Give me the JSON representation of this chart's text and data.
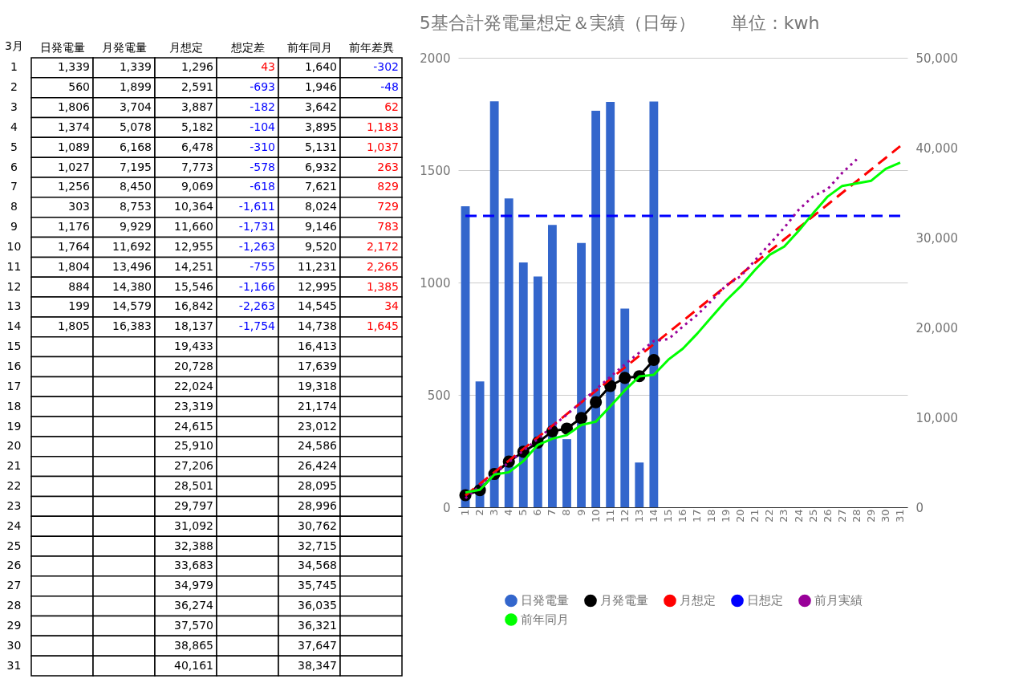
{
  "chart_data": [
    {
      "type": "heatmap",
      "ylabel": "3月",
      "categories": [
        "日発電量",
        "月発電量",
        "月想定",
        "想定差",
        "前年同月",
        "前年差異"
      ],
      "y_categories": [
        "1",
        "2",
        "3",
        "4",
        "5",
        "6",
        "7",
        "8",
        "9",
        "10",
        "11",
        "12",
        "13",
        "14",
        "15",
        "16",
        "17",
        "18",
        "19",
        "20",
        "21",
        "22",
        "23",
        "24",
        "25",
        "26",
        "27",
        "28",
        "29",
        "30",
        "31"
      ],
      "cells": [
        [
          1339,
          1339,
          1296,
          43,
          1640,
          -302
        ],
        [
          560,
          1899,
          2591,
          -693,
          1946,
          -48
        ],
        [
          1806,
          3704,
          3887,
          -182,
          3642,
          62
        ],
        [
          1374,
          5078,
          5182,
          -104,
          3895,
          1183
        ],
        [
          1089,
          6168,
          6478,
          -310,
          5131,
          1037
        ],
        [
          1027,
          7195,
          7773,
          -578,
          6932,
          263
        ],
        [
          1256,
          8450,
          9069,
          -618,
          7621,
          829
        ],
        [
          303,
          8753,
          10364,
          -1611,
          8024,
          729
        ],
        [
          1176,
          9929,
          11660,
          -1731,
          9146,
          783
        ],
        [
          1764,
          11692,
          12955,
          -1263,
          9520,
          2172
        ],
        [
          1804,
          13496,
          14251,
          -755,
          11231,
          2265
        ],
        [
          884,
          14380,
          15546,
          -1166,
          12995,
          1385
        ],
        [
          199,
          14579,
          16842,
          -2263,
          14545,
          34
        ],
        [
          1805,
          16383,
          18137,
          -1754,
          14738,
          1645
        ],
        [
          null,
          null,
          19433,
          null,
          16413,
          null
        ],
        [
          null,
          null,
          20728,
          null,
          17639,
          null
        ],
        [
          null,
          null,
          22024,
          null,
          19318,
          null
        ],
        [
          null,
          null,
          23319,
          null,
          21174,
          null
        ],
        [
          null,
          null,
          24615,
          null,
          23012,
          null
        ],
        [
          null,
          null,
          25910,
          null,
          24586,
          null
        ],
        [
          null,
          null,
          27206,
          null,
          26424,
          null
        ],
        [
          null,
          null,
          28501,
          null,
          28095,
          null
        ],
        [
          null,
          null,
          29797,
          null,
          28996,
          null
        ],
        [
          null,
          null,
          31092,
          null,
          30762,
          null
        ],
        [
          null,
          null,
          32388,
          null,
          32715,
          null
        ],
        [
          null,
          null,
          33683,
          null,
          34568,
          null
        ],
        [
          null,
          null,
          34979,
          null,
          35745,
          null
        ],
        [
          null,
          null,
          36274,
          null,
          36035,
          null
        ],
        [
          null,
          null,
          37570,
          null,
          36321,
          null
        ],
        [
          null,
          null,
          38865,
          null,
          37647,
          null
        ],
        [
          null,
          null,
          40161,
          null,
          38347,
          null
        ]
      ],
      "cell_labels": [
        [
          "1,339",
          "1,339",
          "1,296",
          "43",
          "1,640",
          "-302"
        ],
        [
          "560",
          "1,899",
          "2,591",
          "-693",
          "1,946",
          "-48"
        ],
        [
          "1,806",
          "3,704",
          "3,887",
          "-182",
          "3,642",
          "62"
        ],
        [
          "1,374",
          "5,078",
          "5,182",
          "-104",
          "3,895",
          "1,183"
        ],
        [
          "1,089",
          "6,168",
          "6,478",
          "-310",
          "5,131",
          "1,037"
        ],
        [
          "1,027",
          "7,195",
          "7,773",
          "-578",
          "6,932",
          "263"
        ],
        [
          "1,256",
          "8,450",
          "9,069",
          "-618",
          "7,621",
          "829"
        ],
        [
          "303",
          "8,753",
          "10,364",
          "-1,611",
          "8,024",
          "729"
        ],
        [
          "1,176",
          "9,929",
          "11,660",
          "-1,731",
          "9,146",
          "783"
        ],
        [
          "1,764",
          "11,692",
          "12,955",
          "-1,263",
          "9,520",
          "2,172"
        ],
        [
          "1,804",
          "13,496",
          "14,251",
          "-755",
          "11,231",
          "2,265"
        ],
        [
          "884",
          "14,380",
          "15,546",
          "-1,166",
          "12,995",
          "1,385"
        ],
        [
          "199",
          "14,579",
          "16,842",
          "-2,263",
          "14,545",
          "34"
        ],
        [
          "1,805",
          "16,383",
          "18,137",
          "-1,754",
          "14,738",
          "1,645"
        ],
        [
          null,
          null,
          "19,433",
          null,
          "16,413",
          null
        ],
        [
          null,
          null,
          "20,728",
          null,
          "17,639",
          null
        ],
        [
          null,
          null,
          "22,024",
          null,
          "19,318",
          null
        ],
        [
          null,
          null,
          "23,319",
          null,
          "21,174",
          null
        ],
        [
          null,
          null,
          "24,615",
          null,
          "23,012",
          null
        ],
        [
          null,
          null,
          "25,910",
          null,
          "24,586",
          null
        ],
        [
          null,
          null,
          "27,206",
          null,
          "26,424",
          null
        ],
        [
          null,
          null,
          "28,501",
          null,
          "28,095",
          null
        ],
        [
          null,
          null,
          "29,797",
          null,
          "28,996",
          null
        ],
        [
          null,
          null,
          "31,092",
          null,
          "30,762",
          null
        ],
        [
          null,
          null,
          "32,388",
          null,
          "32,715",
          null
        ],
        [
          null,
          null,
          "33,683",
          null,
          "34,568",
          null
        ],
        [
          null,
          null,
          "34,979",
          null,
          "35,745",
          null
        ],
        [
          null,
          null,
          "36,274",
          null,
          "36,035",
          null
        ],
        [
          null,
          null,
          "37,570",
          null,
          "36,321",
          null
        ],
        [
          null,
          null,
          "38,865",
          null,
          "37,647",
          null
        ],
        [
          null,
          null,
          "40,161",
          null,
          "38,347",
          null
        ]
      ]
    },
    {
      "type": "bar",
      "title": "5基合計発電量想定＆実績（日毎）　　単位：kwh",
      "categories": [
        "1",
        "2",
        "3",
        "4",
        "5",
        "6",
        "7",
        "8",
        "9",
        "10",
        "11",
        "12",
        "13",
        "14",
        "15",
        "16",
        "17",
        "18",
        "19",
        "20",
        "21",
        "22",
        "23",
        "24",
        "25",
        "26",
        "27",
        "28",
        "29",
        "30",
        "31"
      ],
      "series": [
        {
          "name": "日発電量",
          "type": "bar",
          "color": "#3366cc",
          "values": [
            1339,
            560,
            1806,
            1374,
            1089,
            1027,
            1256,
            303,
            1176,
            1764,
            1804,
            884,
            199,
            1805,
            null,
            null,
            null,
            null,
            null,
            null,
            null,
            null,
            null,
            null,
            null,
            null,
            null,
            null,
            null,
            null,
            null
          ]
        },
        {
          "name": "月発電量",
          "type": "line",
          "axis": "y2",
          "marker": "circle",
          "line_style": "solid",
          "color": "#000000",
          "values": [
            1339,
            1899,
            3704,
            5078,
            6168,
            7195,
            8450,
            8753,
            9929,
            11692,
            13496,
            14380,
            14579,
            16383,
            null,
            null,
            null,
            null,
            null,
            null,
            null,
            null,
            null,
            null,
            null,
            null,
            null,
            null,
            null,
            null,
            null
          ]
        },
        {
          "name": "月想定",
          "type": "line",
          "axis": "y2",
          "line_style": "dashed",
          "color": "#ff0000",
          "values": [
            1296,
            2591,
            3887,
            5182,
            6478,
            7773,
            9069,
            10364,
            11660,
            12955,
            14251,
            15546,
            16842,
            18137,
            19433,
            20728,
            22024,
            23319,
            24615,
            25910,
            27206,
            28501,
            29797,
            31092,
            32388,
            33683,
            34979,
            36274,
            37570,
            38865,
            40161
          ]
        },
        {
          "name": "日想定",
          "type": "line",
          "line_style": "dashed",
          "color": "#0000ff",
          "values": [
            1296,
            1296,
            1296,
            1296,
            1296,
            1296,
            1296,
            1296,
            1296,
            1296,
            1296,
            1296,
            1296,
            1296,
            1296,
            1296,
            1296,
            1296,
            1296,
            1296,
            1296,
            1296,
            1296,
            1296,
            1296,
            1296,
            1296,
            1296,
            1296,
            1296,
            1296
          ]
        },
        {
          "name": "前月実績",
          "type": "line",
          "axis": "y2",
          "line_style": "dotted",
          "color": "#990099",
          "values": [
            1000,
            2400,
            3700,
            5000,
            6300,
            7600,
            9000,
            10300,
            11700,
            13100,
            14500,
            15900,
            17200,
            18500,
            18700,
            20100,
            21400,
            23000,
            24700,
            25700,
            27500,
            29300,
            31100,
            33100,
            34600,
            35400,
            37200,
            38700,
            null,
            null,
            null
          ]
        },
        {
          "name": "前年同月",
          "type": "line",
          "axis": "y2",
          "line_style": "solid",
          "color": "#00ff00",
          "values": [
            1640,
            1946,
            3642,
            3895,
            5131,
            6932,
            7621,
            8024,
            9146,
            9520,
            11231,
            12995,
            14545,
            14738,
            16413,
            17639,
            19318,
            21174,
            23012,
            24586,
            26424,
            28095,
            28996,
            30762,
            32715,
            34568,
            35745,
            36035,
            36321,
            37647,
            38347
          ]
        }
      ],
      "ylim": [
        0,
        2000
      ],
      "yticks": [
        0,
        500,
        1000,
        1500,
        2000
      ],
      "y2lim": [
        0,
        50000
      ],
      "y2ticks": [
        0,
        {
          "value": 10000,
          "label": "10,000"
        },
        {
          "value": 20000,
          "label": "20,000"
        },
        {
          "value": 30000,
          "label": "30,000"
        },
        {
          "value": 40000,
          "label": "40,000"
        },
        {
          "value": 50000,
          "label": "50,000"
        }
      ],
      "grid": "y",
      "legend": "bottom"
    }
  ]
}
